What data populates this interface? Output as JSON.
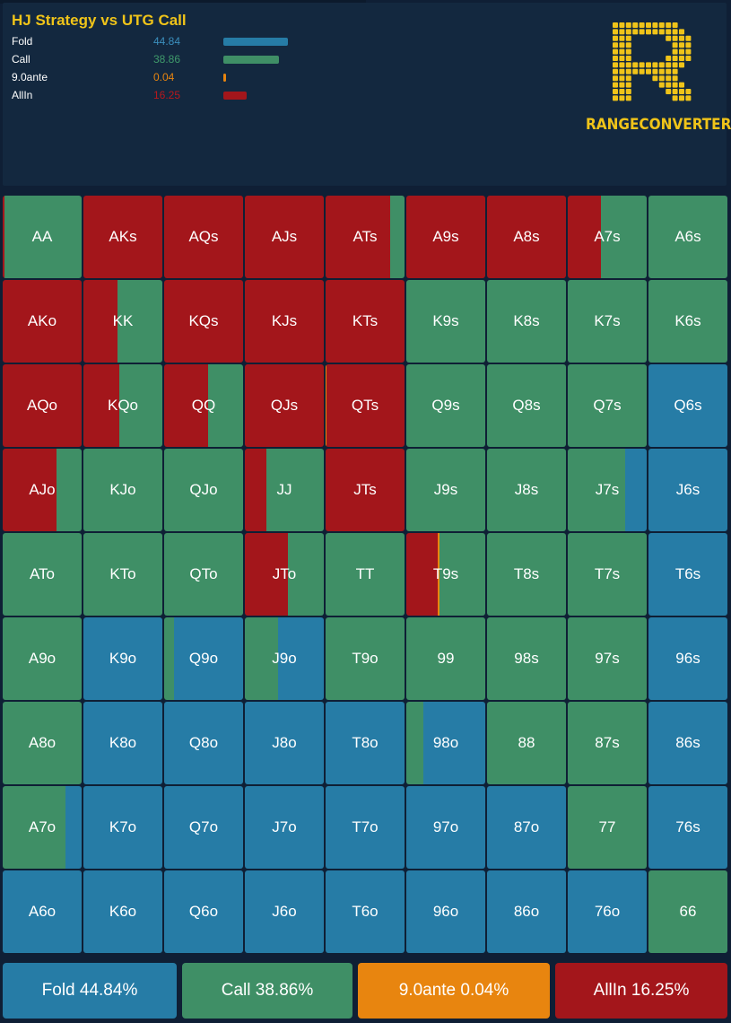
{
  "title": "HJ Strategy vs UTG Call",
  "brand": "RANGECONVERTER",
  "colors": {
    "fold": "#267ca6",
    "call": "#3f8f66",
    "ante": "#e8850f",
    "allin": "#a3161b"
  },
  "legend": [
    {
      "key": "fold",
      "label": "Fold",
      "value": "44.84",
      "color": "#3b8fbd",
      "fraction": 0.4484
    },
    {
      "key": "call",
      "label": "Call",
      "value": "38.86",
      "color": "#3f9a6b",
      "fraction": 0.3886
    },
    {
      "key": "ante",
      "label": "9.0ante",
      "value": "0.04",
      "color": "#e8850f",
      "fraction": 0.0004
    },
    {
      "key": "allin",
      "label": "AllIn",
      "value": "16.25",
      "color": "#b8181d",
      "fraction": 0.1625
    }
  ],
  "summary": [
    {
      "key": "fold",
      "text": "Fold 44.84%"
    },
    {
      "key": "call",
      "text": "Call 38.86%"
    },
    {
      "key": "ante",
      "text": "9.0ante 0.04%"
    },
    {
      "key": "allin",
      "text": "AllIn 16.25%"
    }
  ],
  "hands": [
    [
      {
        "h": "AA",
        "mix": [
          [
            "allin",
            0.02
          ],
          [
            "call",
            0.98
          ]
        ]
      },
      {
        "h": "AKs",
        "mix": [
          [
            "allin",
            1
          ]
        ]
      },
      {
        "h": "AQs",
        "mix": [
          [
            "allin",
            1
          ]
        ]
      },
      {
        "h": "AJs",
        "mix": [
          [
            "allin",
            1
          ]
        ]
      },
      {
        "h": "ATs",
        "mix": [
          [
            "allin",
            0.82
          ],
          [
            "call",
            0.18
          ]
        ]
      },
      {
        "h": "A9s",
        "mix": [
          [
            "allin",
            1
          ]
        ]
      },
      {
        "h": "A8s",
        "mix": [
          [
            "allin",
            1
          ]
        ]
      },
      {
        "h": "A7s",
        "mix": [
          [
            "allin",
            0.42
          ],
          [
            "call",
            0.58
          ]
        ]
      },
      {
        "h": "A6s",
        "mix": [
          [
            "call",
            1
          ]
        ]
      }
    ],
    [
      {
        "h": "AKo",
        "mix": [
          [
            "allin",
            1
          ]
        ]
      },
      {
        "h": "KK",
        "mix": [
          [
            "allin",
            0.43
          ],
          [
            "call",
            0.57
          ]
        ]
      },
      {
        "h": "KQs",
        "mix": [
          [
            "allin",
            1
          ]
        ]
      },
      {
        "h": "KJs",
        "mix": [
          [
            "allin",
            1
          ]
        ]
      },
      {
        "h": "KTs",
        "mix": [
          [
            "allin",
            1
          ]
        ]
      },
      {
        "h": "K9s",
        "mix": [
          [
            "call",
            1
          ]
        ]
      },
      {
        "h": "K8s",
        "mix": [
          [
            "call",
            1
          ]
        ]
      },
      {
        "h": "K7s",
        "mix": [
          [
            "call",
            1
          ]
        ]
      },
      {
        "h": "K6s",
        "mix": [
          [
            "call",
            1
          ]
        ]
      }
    ],
    [
      {
        "h": "AQo",
        "mix": [
          [
            "allin",
            1
          ]
        ]
      },
      {
        "h": "KQo",
        "mix": [
          [
            "allin",
            0.45
          ],
          [
            "call",
            0.55
          ]
        ]
      },
      {
        "h": "QQ",
        "mix": [
          [
            "allin",
            0.56
          ],
          [
            "call",
            0.44
          ]
        ]
      },
      {
        "h": "QJs",
        "mix": [
          [
            "allin",
            1
          ]
        ]
      },
      {
        "h": "QTs",
        "mix": [
          [
            "ante",
            0.01
          ],
          [
            "allin",
            0.99
          ]
        ]
      },
      {
        "h": "Q9s",
        "mix": [
          [
            "call",
            1
          ]
        ]
      },
      {
        "h": "Q8s",
        "mix": [
          [
            "call",
            1
          ]
        ]
      },
      {
        "h": "Q7s",
        "mix": [
          [
            "call",
            1
          ]
        ]
      },
      {
        "h": "Q6s",
        "mix": [
          [
            "fold",
            1
          ]
        ]
      }
    ],
    [
      {
        "h": "AJo",
        "mix": [
          [
            "allin",
            0.68
          ],
          [
            "call",
            0.32
          ]
        ]
      },
      {
        "h": "KJo",
        "mix": [
          [
            "call",
            1
          ]
        ]
      },
      {
        "h": "QJo",
        "mix": [
          [
            "call",
            1
          ]
        ]
      },
      {
        "h": "JJ",
        "mix": [
          [
            "allin",
            0.27
          ],
          [
            "call",
            0.73
          ]
        ]
      },
      {
        "h": "JTs",
        "mix": [
          [
            "allin",
            1
          ]
        ]
      },
      {
        "h": "J9s",
        "mix": [
          [
            "call",
            1
          ]
        ]
      },
      {
        "h": "J8s",
        "mix": [
          [
            "call",
            1
          ]
        ]
      },
      {
        "h": "J7s",
        "mix": [
          [
            "call",
            0.73
          ],
          [
            "fold",
            0.27
          ]
        ]
      },
      {
        "h": "J6s",
        "mix": [
          [
            "fold",
            1
          ]
        ]
      }
    ],
    [
      {
        "h": "ATo",
        "mix": [
          [
            "call",
            1
          ]
        ]
      },
      {
        "h": "KTo",
        "mix": [
          [
            "call",
            1
          ]
        ]
      },
      {
        "h": "QTo",
        "mix": [
          [
            "call",
            1
          ]
        ]
      },
      {
        "h": "JTo",
        "mix": [
          [
            "allin",
            0.55
          ],
          [
            "call",
            0.45
          ]
        ]
      },
      {
        "h": "TT",
        "mix": [
          [
            "call",
            1
          ]
        ]
      },
      {
        "h": "T9s",
        "mix": [
          [
            "allin",
            0.4
          ],
          [
            "ante",
            0.02
          ],
          [
            "call",
            0.58
          ]
        ]
      },
      {
        "h": "T8s",
        "mix": [
          [
            "call",
            1
          ]
        ]
      },
      {
        "h": "T7s",
        "mix": [
          [
            "call",
            1
          ]
        ]
      },
      {
        "h": "T6s",
        "mix": [
          [
            "fold",
            1
          ]
        ]
      }
    ],
    [
      {
        "h": "A9o",
        "mix": [
          [
            "call",
            1
          ]
        ]
      },
      {
        "h": "K9o",
        "mix": [
          [
            "fold",
            1
          ]
        ]
      },
      {
        "h": "Q9o",
        "mix": [
          [
            "call",
            0.12
          ],
          [
            "fold",
            0.88
          ]
        ]
      },
      {
        "h": "J9o",
        "mix": [
          [
            "call",
            0.42
          ],
          [
            "fold",
            0.58
          ]
        ]
      },
      {
        "h": "T9o",
        "mix": [
          [
            "call",
            1
          ]
        ]
      },
      {
        "h": "99",
        "mix": [
          [
            "call",
            1
          ]
        ]
      },
      {
        "h": "98s",
        "mix": [
          [
            "call",
            1
          ]
        ]
      },
      {
        "h": "97s",
        "mix": [
          [
            "call",
            1
          ]
        ]
      },
      {
        "h": "96s",
        "mix": [
          [
            "fold",
            1
          ]
        ]
      }
    ],
    [
      {
        "h": "A8o",
        "mix": [
          [
            "call",
            1
          ]
        ]
      },
      {
        "h": "K8o",
        "mix": [
          [
            "fold",
            1
          ]
        ]
      },
      {
        "h": "Q8o",
        "mix": [
          [
            "fold",
            1
          ]
        ]
      },
      {
        "h": "J8o",
        "mix": [
          [
            "fold",
            1
          ]
        ]
      },
      {
        "h": "T8o",
        "mix": [
          [
            "fold",
            1
          ]
        ]
      },
      {
        "h": "98o",
        "mix": [
          [
            "call",
            0.22
          ],
          [
            "fold",
            0.78
          ]
        ]
      },
      {
        "h": "88",
        "mix": [
          [
            "call",
            1
          ]
        ]
      },
      {
        "h": "87s",
        "mix": [
          [
            "call",
            1
          ]
        ]
      },
      {
        "h": "86s",
        "mix": [
          [
            "fold",
            1
          ]
        ]
      }
    ],
    [
      {
        "h": "A7o",
        "mix": [
          [
            "call",
            0.8
          ],
          [
            "fold",
            0.2
          ]
        ]
      },
      {
        "h": "K7o",
        "mix": [
          [
            "fold",
            1
          ]
        ]
      },
      {
        "h": "Q7o",
        "mix": [
          [
            "fold",
            1
          ]
        ]
      },
      {
        "h": "J7o",
        "mix": [
          [
            "fold",
            1
          ]
        ]
      },
      {
        "h": "T7o",
        "mix": [
          [
            "fold",
            1
          ]
        ]
      },
      {
        "h": "97o",
        "mix": [
          [
            "fold",
            1
          ]
        ]
      },
      {
        "h": "87o",
        "mix": [
          [
            "fold",
            1
          ]
        ]
      },
      {
        "h": "77",
        "mix": [
          [
            "call",
            1
          ]
        ]
      },
      {
        "h": "76s",
        "mix": [
          [
            "fold",
            1
          ]
        ]
      }
    ],
    [
      {
        "h": "A6o",
        "mix": [
          [
            "fold",
            1
          ]
        ]
      },
      {
        "h": "K6o",
        "mix": [
          [
            "fold",
            1
          ]
        ]
      },
      {
        "h": "Q6o",
        "mix": [
          [
            "fold",
            1
          ]
        ]
      },
      {
        "h": "J6o",
        "mix": [
          [
            "fold",
            1
          ]
        ]
      },
      {
        "h": "T6o",
        "mix": [
          [
            "fold",
            1
          ]
        ]
      },
      {
        "h": "96o",
        "mix": [
          [
            "fold",
            1
          ]
        ]
      },
      {
        "h": "86o",
        "mix": [
          [
            "fold",
            1
          ]
        ]
      },
      {
        "h": "76o",
        "mix": [
          [
            "fold",
            1
          ]
        ]
      },
      {
        "h": "66",
        "mix": [
          [
            "call",
            1
          ]
        ]
      }
    ]
  ]
}
